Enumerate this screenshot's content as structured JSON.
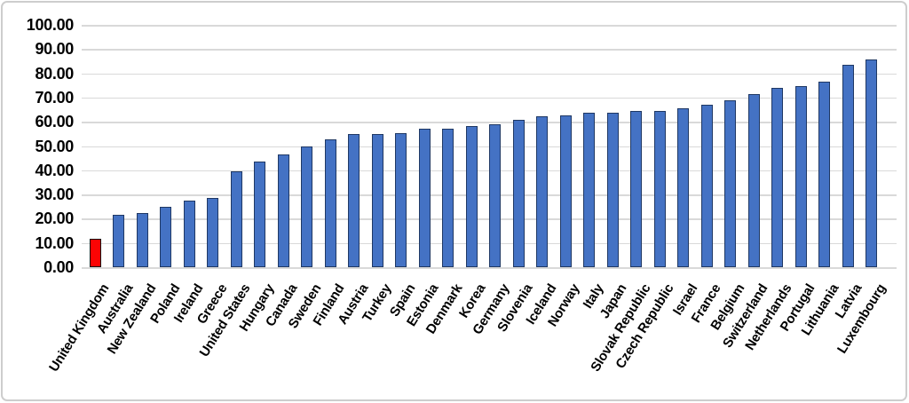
{
  "chart_data": {
    "type": "bar",
    "title": "",
    "xlabel": "",
    "ylabel": "",
    "ylim": [
      0,
      100
    ],
    "ytick_step": 10,
    "ytick_labels": [
      "100.00",
      "90.00",
      "80.00",
      "70.00",
      "60.00",
      "50.00",
      "40.00",
      "30.00",
      "20.00",
      "10.00",
      "0.00"
    ],
    "grid": true,
    "legend": false,
    "categories": [
      "United Kingdom",
      "Australia",
      "New Zealand",
      "Poland",
      "Ireland",
      "Greece",
      "United States",
      "Hungary",
      "Canada",
      "Sweden",
      "Finland",
      "Austria",
      "Turkey",
      "Spain",
      "Estonia",
      "Denmark",
      "Korea",
      "Germany",
      "Slovenia",
      "Iceland",
      "Norway",
      "Italy",
      "Japan",
      "Slovak Republic",
      "Czech Republic",
      "Israel",
      "France",
      "Belgium",
      "Switzerland",
      "Netherlands",
      "Portugal",
      "Lithuania",
      "Latvia",
      "Luxembourg"
    ],
    "values": [
      11.8,
      21.5,
      22.4,
      25.0,
      27.3,
      28.6,
      39.7,
      43.6,
      46.5,
      49.8,
      52.9,
      54.8,
      55.0,
      55.3,
      57.0,
      57.3,
      58.4,
      58.8,
      60.9,
      62.4,
      62.8,
      63.6,
      63.8,
      64.4,
      64.5,
      65.5,
      67.0,
      68.7,
      71.4,
      74.0,
      74.9,
      76.7,
      83.6,
      85.7
    ],
    "highlight": {
      "index": 0,
      "category": "United Kingdom"
    },
    "colors": {
      "bar_fill": "#4472C4",
      "bar_border": "#1F3864",
      "highlight_fill": "#FB0404",
      "highlight_border": "#141414",
      "gridline": "#D9D9D9",
      "frame_border": "#CDCDCD",
      "text": "#000000",
      "background": "#FFFFFF"
    }
  }
}
